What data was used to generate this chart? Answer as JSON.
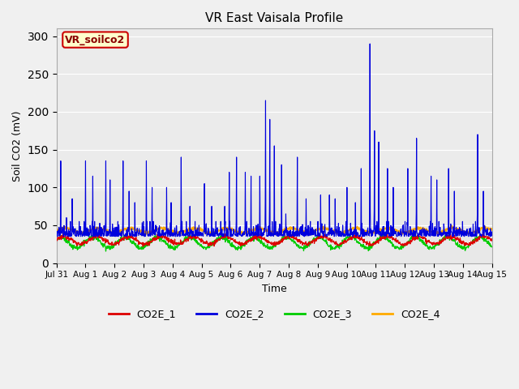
{
  "title": "VR East Vaisala Profile",
  "xlabel": "Time",
  "ylabel": "Soil CO2 (mV)",
  "ylim": [
    0,
    310
  ],
  "yticks": [
    0,
    50,
    100,
    150,
    200,
    250,
    300
  ],
  "fig_facecolor": "#f0f0f0",
  "plot_bg_color": "#e8e8e8",
  "legend_label": "VR_soilco2",
  "series_colors": {
    "CO2E_1": "#dd0000",
    "CO2E_2": "#0000dd",
    "CO2E_3": "#00cc00",
    "CO2E_4": "#ffaa00"
  },
  "xtick_labels": [
    "Jul 31",
    "Aug 1",
    "Aug 2",
    "Aug 3",
    "Aug 4",
    "Aug 5",
    "Aug 6",
    "Aug 7",
    "Aug 8",
    "Aug 9",
    "Aug 10",
    "Aug 11",
    "Aug 12",
    "Aug 13",
    "Aug 14",
    "Aug 15"
  ],
  "xtick_positions": [
    0,
    1,
    2,
    3,
    4,
    5,
    6,
    7,
    8,
    9,
    10,
    11,
    12,
    13,
    14,
    15
  ],
  "band_y_low": 95,
  "band_color_bottom": "#dcdcdc",
  "band_color_top": "#ebebeb"
}
